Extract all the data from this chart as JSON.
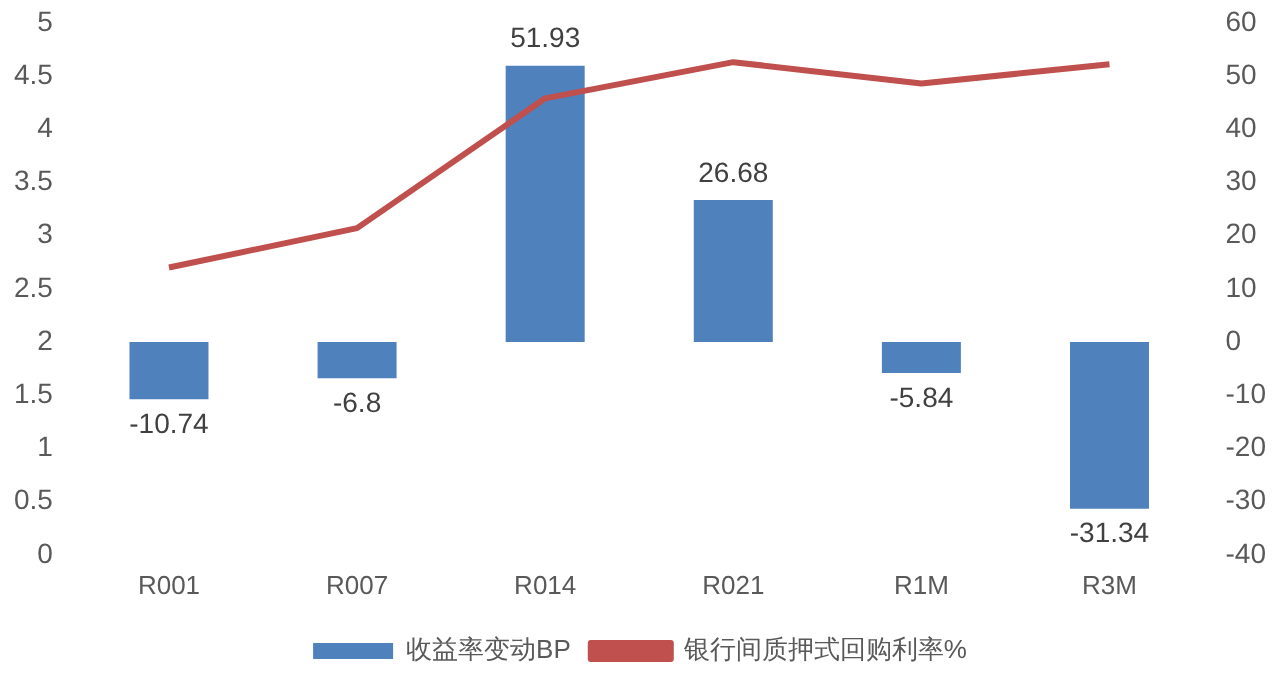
{
  "chart_data": {
    "type": "bar",
    "categories": [
      "R001",
      "R007",
      "R014",
      "R021",
      "R1M",
      "R3M"
    ],
    "series": [
      {
        "name": "收益率变动BP",
        "type": "bar",
        "axis": "y2",
        "color": "#4f81bd",
        "values": [
          -10.74,
          -6.8,
          51.93,
          26.68,
          -5.84,
          -31.34
        ],
        "value_labels": [
          "-10.74",
          "-6.8",
          "51.93",
          "26.68",
          "-5.84",
          "-31.34"
        ]
      },
      {
        "name": "银行间质押式回购利率%",
        "type": "line",
        "color": "#c0504d",
        "values": [
          2.7,
          3.07,
          4.29,
          4.63,
          4.43,
          4.61
        ]
      }
    ],
    "ylim": [
      0,
      5
    ],
    "yticks": [
      0,
      0.5,
      1,
      1.5,
      2,
      2.5,
      3,
      3.5,
      4,
      4.5,
      5
    ],
    "y2lim": [
      -40,
      60
    ],
    "y2ticks": [
      -40,
      -30,
      -20,
      -10,
      0,
      10,
      20,
      30,
      40,
      50,
      60
    ],
    "grid": false,
    "legend": "bottom",
    "marker": "none"
  }
}
